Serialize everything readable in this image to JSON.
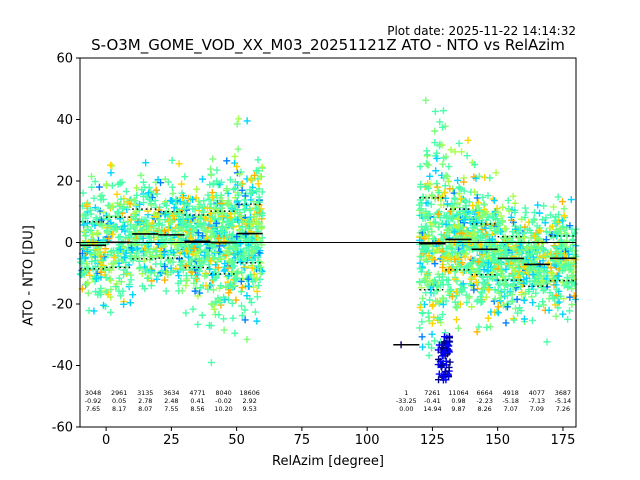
{
  "header": {
    "plot_date": "Plot date: 2025-11-22 14:14:32",
    "title": "S-O3M_GOME_VOD_XX_M03_20251121Z ATO - NTO vs RelAzim"
  },
  "chart_data": {
    "type": "scatter",
    "title": "S-O3M_GOME_VOD_XX_M03_20251121Z ATO - NTO vs RelAzim",
    "xlabel": "RelAzim [degree]",
    "ylabel": "ATO - NTO [DU]",
    "xlim": [
      -10,
      180
    ],
    "ylim": [
      -60,
      60
    ],
    "xticks": [
      0,
      25,
      50,
      75,
      100,
      125,
      150,
      175
    ],
    "yticks": [
      -60,
      -40,
      -20,
      0,
      20,
      40,
      60
    ],
    "grid": false,
    "marker": "+",
    "zero_line": 0,
    "bins": [
      {
        "x": -5,
        "count": "3048",
        "mean": "-0.92",
        "std": "7.65",
        "mean_val": -0.92,
        "std_val": 7.65
      },
      {
        "x": 5,
        "count": "2961",
        "mean": "0.05",
        "std": "8.17",
        "mean_val": 0.05,
        "std_val": 8.17
      },
      {
        "x": 15,
        "count": "3135",
        "mean": "2.78",
        "std": "8.07",
        "mean_val": 2.78,
        "std_val": 8.07
      },
      {
        "x": 25,
        "count": "3634",
        "mean": "2.48",
        "std": "7.55",
        "mean_val": 2.48,
        "std_val": 7.55
      },
      {
        "x": 35,
        "count": "4771",
        "mean": "0.41",
        "std": "8.56",
        "mean_val": 0.41,
        "std_val": 8.56
      },
      {
        "x": 45,
        "count": "8040",
        "mean": "-0.02",
        "std": "10.20",
        "mean_val": -0.02,
        "std_val": 10.2
      },
      {
        "x": 55,
        "count": "18606",
        "mean": "2.92",
        "std": "9.53",
        "mean_val": 2.92,
        "std_val": 9.53
      },
      {
        "x": 115,
        "count": "1",
        "mean": "-33.25",
        "std": "0.00",
        "mean_val": -33.25,
        "std_val": 0.0
      },
      {
        "x": 125,
        "count": "7261",
        "mean": "-0.41",
        "std": "14.94",
        "mean_val": -0.41,
        "std_val": 14.94
      },
      {
        "x": 135,
        "count": "11064",
        "mean": "0.98",
        "std": "9.87",
        "mean_val": 0.98,
        "std_val": 9.87
      },
      {
        "x": 145,
        "count": "6664",
        "mean": "-2.23",
        "std": "8.26",
        "mean_val": -2.23,
        "std_val": 8.26
      },
      {
        "x": 155,
        "count": "4918",
        "mean": "-5.18",
        "std": "7.07",
        "mean_val": -5.18,
        "std_val": 7.07
      },
      {
        "x": 165,
        "count": "4077",
        "mean": "-7.13",
        "std": "7.09",
        "mean_val": -7.13,
        "std_val": 7.09
      },
      {
        "x": 175,
        "count": "3687",
        "mean": "-5.14",
        "std": "7.26",
        "mean_val": -5.14,
        "std_val": 7.26
      }
    ],
    "colors": {
      "cmap": [
        "#00007f",
        "#0000ff",
        "#0080ff",
        "#00d4ff",
        "#4cffaa",
        "#7dff7a",
        "#aaff4d",
        "#ffd400",
        "#ffb000"
      ],
      "mean_line": "#000000",
      "std_line": "#000000"
    }
  }
}
